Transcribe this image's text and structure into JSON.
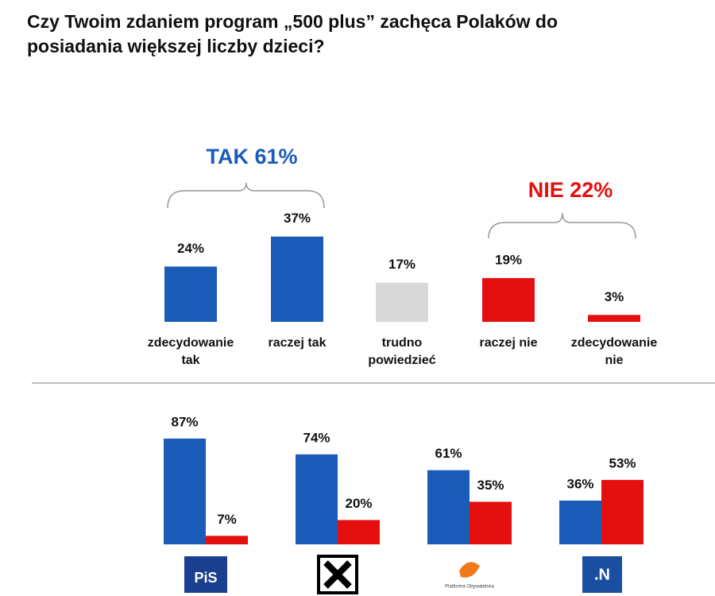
{
  "chart_data": [
    {
      "type": "bar",
      "title": "Czy Twoim zdaniem program „500 plus” zachęca Polaków do posiadania większej liczby dzieci?",
      "annotations": [
        "TAK 61%",
        "NIE 22%"
      ],
      "categories": [
        "zdecydowanie tak",
        "raczej tak",
        "trudno powiedzieć",
        "raczej nie",
        "zdecydowanie nie"
      ],
      "values": [
        24,
        37,
        17,
        19,
        3
      ],
      "value_labels": [
        "24%",
        "37%",
        "17%",
        "19%",
        "3%"
      ],
      "colors": [
        "#1a5cb8",
        "#1a5cb8",
        "#d9d9d9",
        "#e41010",
        "#e41010"
      ]
    },
    {
      "type": "grouped-bar",
      "categories": [
        "PiS",
        null,
        "Platforma Obywatelska",
        ".N"
      ],
      "series": [
        {
          "color": "#1a5cb8",
          "values": [
            87,
            74,
            61,
            36
          ],
          "value_labels": [
            "87%",
            "74%",
            "61%",
            "36%"
          ]
        },
        {
          "color": "#e41010",
          "values": [
            7,
            20,
            35,
            53
          ],
          "value_labels": [
            "7%",
            "20%",
            "35%",
            "53%"
          ]
        }
      ]
    }
  ]
}
